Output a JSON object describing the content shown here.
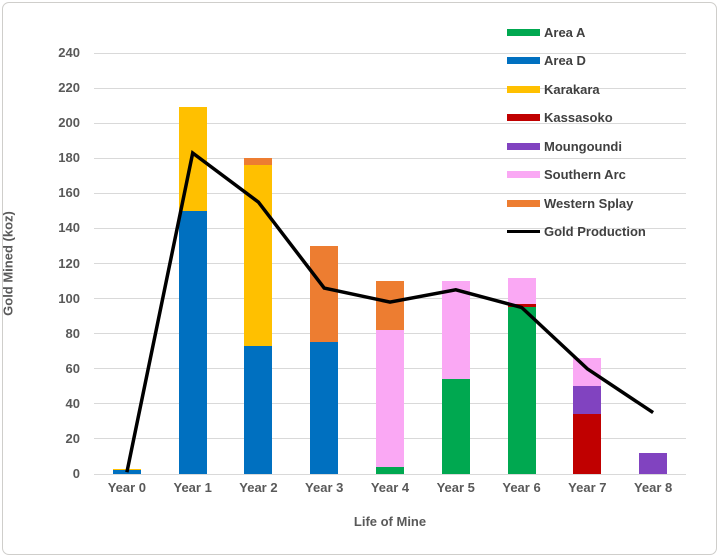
{
  "window": {
    "background_color": "#ffffff",
    "border_color": "#cfcecb"
  },
  "styles": {
    "gridline_color": "#d9d9d9",
    "tick_label_color": "#595959",
    "axis_title_color": "#595959",
    "legend_text_color": "#404040"
  },
  "chart_data": {
    "type": "bar",
    "subtype": "stacked-bar-with-line-overlay",
    "title": "",
    "xlabel": "Life of Mine",
    "ylabel": "Gold Mined (koz)",
    "grid": true,
    "legend_position": "top-right-inside",
    "ylim": [
      0,
      240
    ],
    "ytick_step": 20,
    "categories": [
      "Year 0",
      "Year 1",
      "Year 2",
      "Year 3",
      "Year 4",
      "Year 5",
      "Year 6",
      "Year 7",
      "Year 8"
    ],
    "series": [
      {
        "name": "Area A",
        "color": "#00a850",
        "values": [
          0,
          0,
          0,
          0,
          4,
          54,
          95,
          0,
          0
        ]
      },
      {
        "name": "Area D",
        "color": "#0070c0",
        "values": [
          2,
          150,
          73,
          75,
          0,
          0,
          0,
          0,
          0
        ]
      },
      {
        "name": "Karakara",
        "color": "#ffc000",
        "values": [
          1,
          59,
          103,
          0,
          0,
          0,
          0,
          0,
          0
        ]
      },
      {
        "name": "Kassasoko",
        "color": "#c00000",
        "values": [
          0,
          0,
          0,
          0,
          0,
          0,
          2,
          34,
          0
        ]
      },
      {
        "name": "Moungoundi",
        "color": "#8143c0",
        "values": [
          0,
          0,
          0,
          0,
          0,
          0,
          0,
          16,
          12
        ]
      },
      {
        "name": "Southern Arc",
        "color": "#faa8f4",
        "values": [
          0,
          0,
          0,
          0,
          78,
          56,
          15,
          16,
          0
        ]
      },
      {
        "name": "Western Splay",
        "color": "#ed7d31",
        "values": [
          0,
          0,
          4,
          55,
          28,
          0,
          0,
          0,
          0
        ]
      }
    ],
    "line_series": {
      "name": "Gold Production",
      "color": "#000000",
      "values": [
        1,
        183,
        155,
        106,
        98,
        105,
        95,
        60,
        35
      ]
    },
    "bar_totals": [
      3,
      209,
      180,
      130,
      110,
      110,
      112,
      66,
      12
    ]
  }
}
